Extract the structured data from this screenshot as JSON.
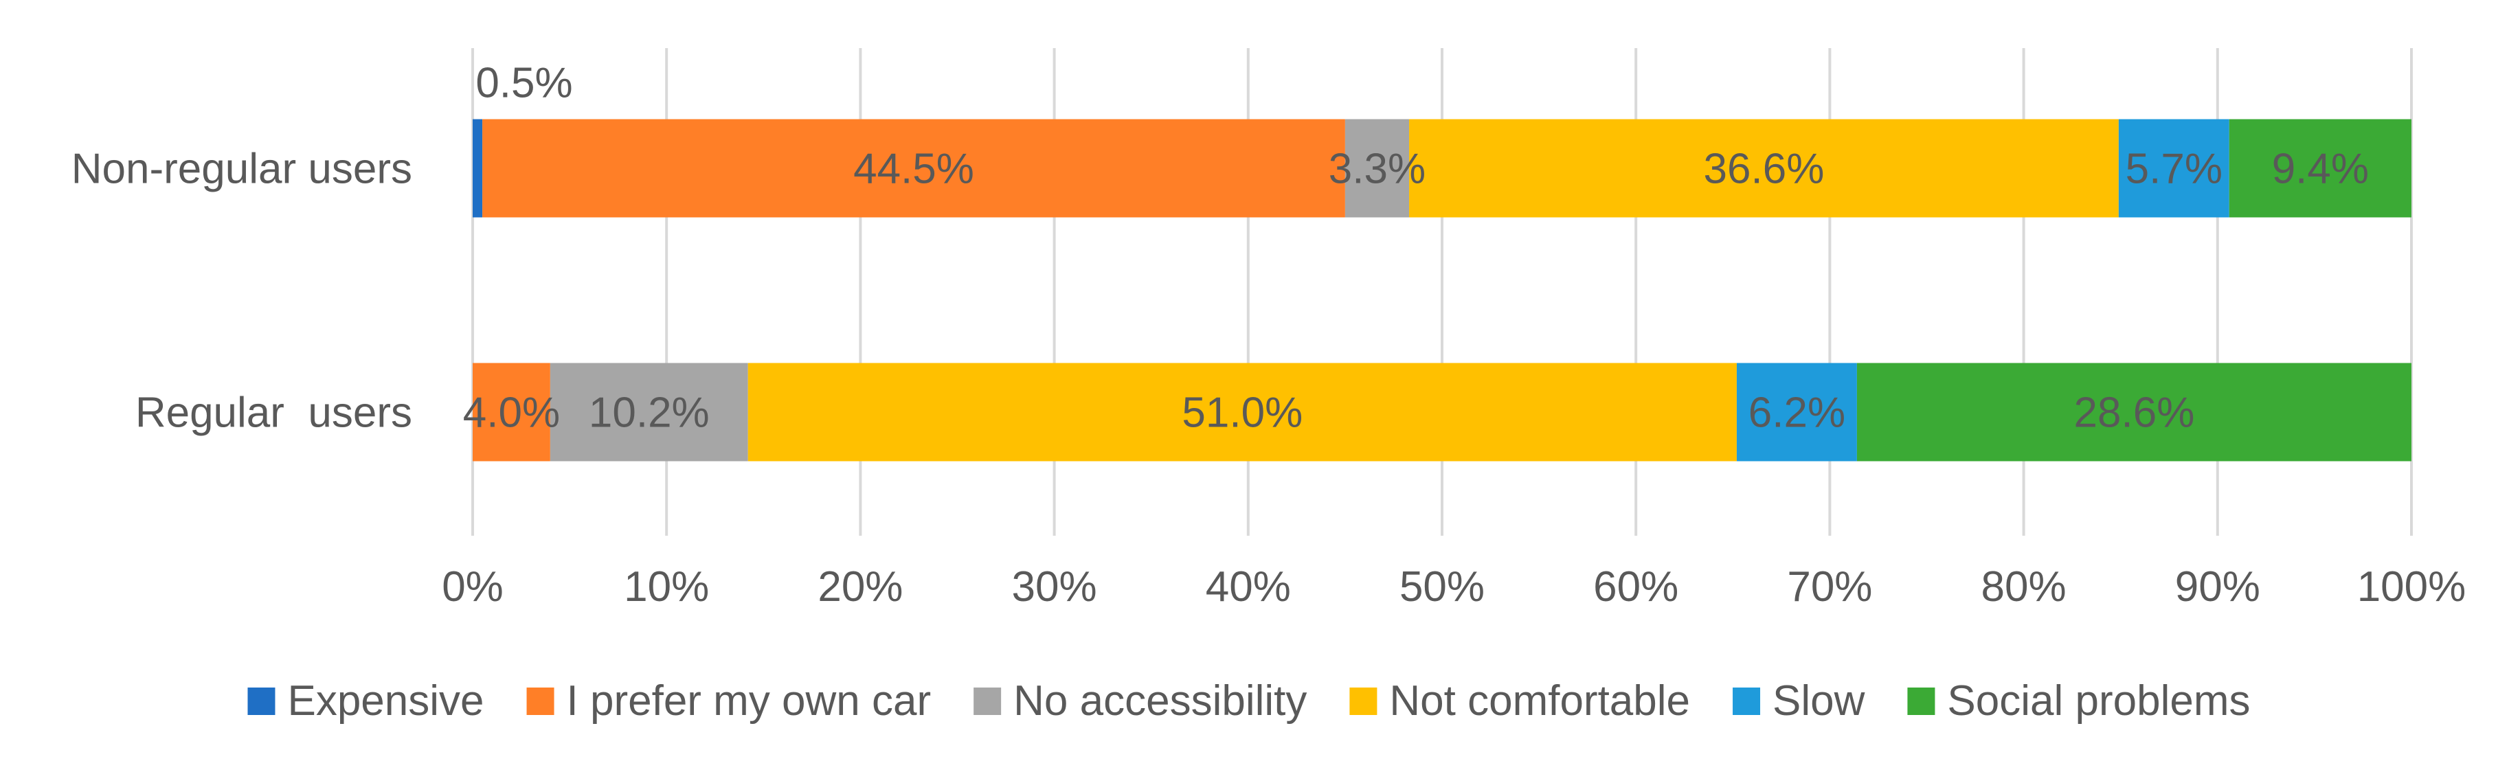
{
  "chart_data": {
    "type": "bar",
    "orientation": "horizontal",
    "stacked": "percent",
    "categories": [
      "Non-regular users",
      "Regular  users"
    ],
    "series": [
      {
        "name": "Expensive",
        "color": "#1F6FC5",
        "values": [
          0.5,
          0.0
        ],
        "labels": [
          "0.5%",
          ""
        ]
      },
      {
        "name": "I prefer my own car",
        "color": "#FF7F27",
        "values": [
          44.5,
          4.0
        ],
        "labels": [
          "44.5%",
          "4.0%"
        ]
      },
      {
        "name": "No accessibility",
        "color": "#A6A6A6",
        "values": [
          3.3,
          10.2
        ],
        "labels": [
          "3.3%",
          "10.2%"
        ]
      },
      {
        "name": "Not comfortable",
        "color": "#FFC000",
        "values": [
          36.6,
          51.0
        ],
        "labels": [
          "36.6%",
          "51.0%"
        ]
      },
      {
        "name": "Slow",
        "color": "#1F9BDB",
        "values": [
          5.7,
          6.2
        ],
        "labels": [
          "5.7%",
          "6.2%"
        ]
      },
      {
        "name": "Social problems",
        "color": "#3BAA35",
        "values": [
          9.4,
          28.6
        ],
        "labels": [
          "9.4%",
          "28.6%"
        ]
      }
    ],
    "xlim": [
      0,
      100
    ],
    "xticks": [
      "0%",
      "10%",
      "20%",
      "30%",
      "40%",
      "50%",
      "60%",
      "70%",
      "80%",
      "90%",
      "100%"
    ],
    "grid": true,
    "legend_position": "bottom",
    "title": "",
    "xlabel": "",
    "ylabel": ""
  }
}
